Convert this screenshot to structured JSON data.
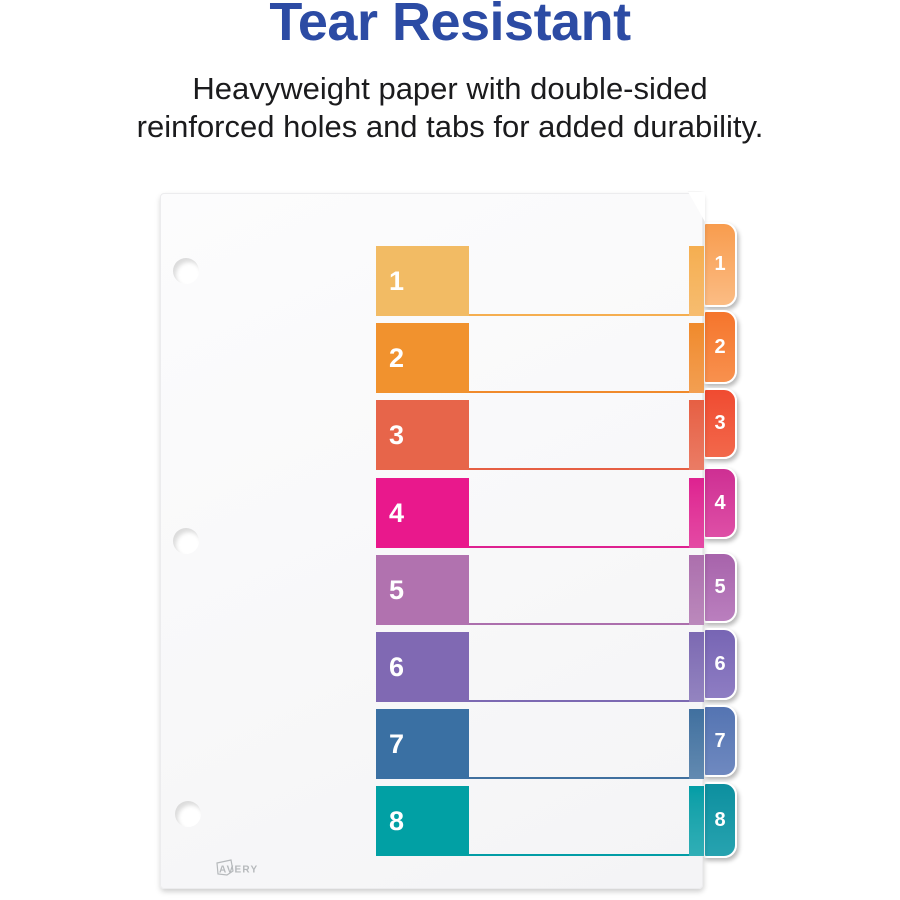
{
  "header": {
    "title": "Tear Resistant",
    "title_color": "#2C4BA4",
    "subtitle_lines": [
      "Heavyweight paper with double-sided",
      "reinforced holes and tabs for added durability."
    ]
  },
  "product": {
    "brand": "AVERY",
    "sheet_color": "#F8F8F9",
    "dividers": [
      {
        "number": "1",
        "block_color": "#F2BB64",
        "edge_color": "#F5AE50",
        "tab_color": "#F89C4E",
        "tab_color_light": "#FBBC84"
      },
      {
        "number": "2",
        "block_color": "#F1922E",
        "edge_color": "#F08A2B",
        "tab_color": "#F5752C",
        "tab_color_light": "#F8914E"
      },
      {
        "number": "3",
        "block_color": "#E7654A",
        "edge_color": "#E65F43",
        "tab_color": "#F04B31",
        "tab_color_light": "#F2684B"
      },
      {
        "number": "4",
        "block_color": "#E9188C",
        "edge_color": "#DE2190",
        "tab_color": "#CE2F93",
        "tab_color_light": "#DE4FA6"
      },
      {
        "number": "5",
        "block_color": "#B172AF",
        "edge_color": "#AC6FAD",
        "tab_color": "#A763AB",
        "tab_color_light": "#BA7FBE"
      },
      {
        "number": "6",
        "block_color": "#8069B3",
        "edge_color": "#7C69B2",
        "tab_color": "#7765B4",
        "tab_color_light": "#8E7DC3"
      },
      {
        "number": "7",
        "block_color": "#3A70A3",
        "edge_color": "#40709F",
        "tab_color": "#5474B2",
        "tab_color_light": "#6F89C0"
      },
      {
        "number": "8",
        "block_color": "#01A0A4",
        "edge_color": "#029DA6",
        "tab_color": "#0D8F9F",
        "tab_color_light": "#27A3B0"
      }
    ]
  }
}
